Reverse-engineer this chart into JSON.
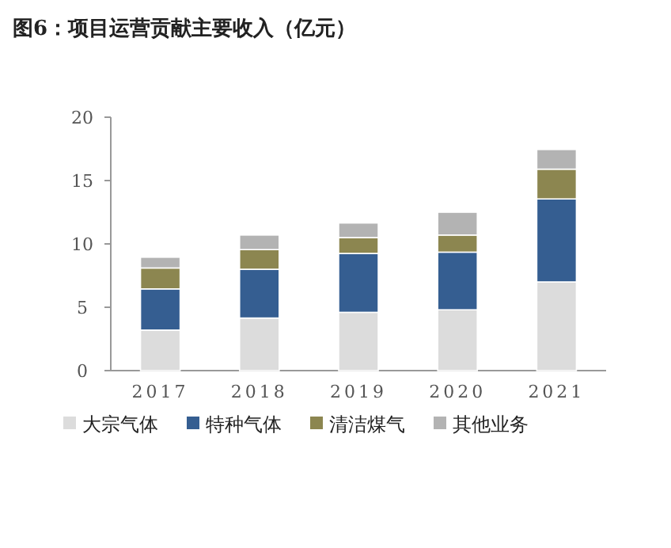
{
  "chart_data": {
    "type": "bar",
    "title": "图6：项目运营贡献主要收入（亿元）",
    "categories": [
      "2017",
      "2018",
      "2019",
      "2020",
      "2021"
    ],
    "series": [
      {
        "name": "大宗气体",
        "color": "#dcdcdc",
        "values": [
          3.2,
          4.15,
          4.6,
          4.8,
          7.0
        ]
      },
      {
        "name": "特种气体",
        "color": "#355e91",
        "values": [
          3.25,
          3.85,
          4.65,
          4.55,
          6.55
        ]
      },
      {
        "name": "清洁煤气",
        "color": "#8c8650",
        "values": [
          1.65,
          1.55,
          1.25,
          1.35,
          2.35
        ]
      },
      {
        "name": "其他业务",
        "color": "#b3b3b3",
        "values": [
          0.85,
          1.15,
          1.15,
          1.8,
          1.55
        ]
      }
    ],
    "stacked": true,
    "ylim": [
      0,
      20
    ],
    "yticks": [
      0,
      5,
      10,
      15,
      20
    ],
    "legend": "bottom"
  }
}
